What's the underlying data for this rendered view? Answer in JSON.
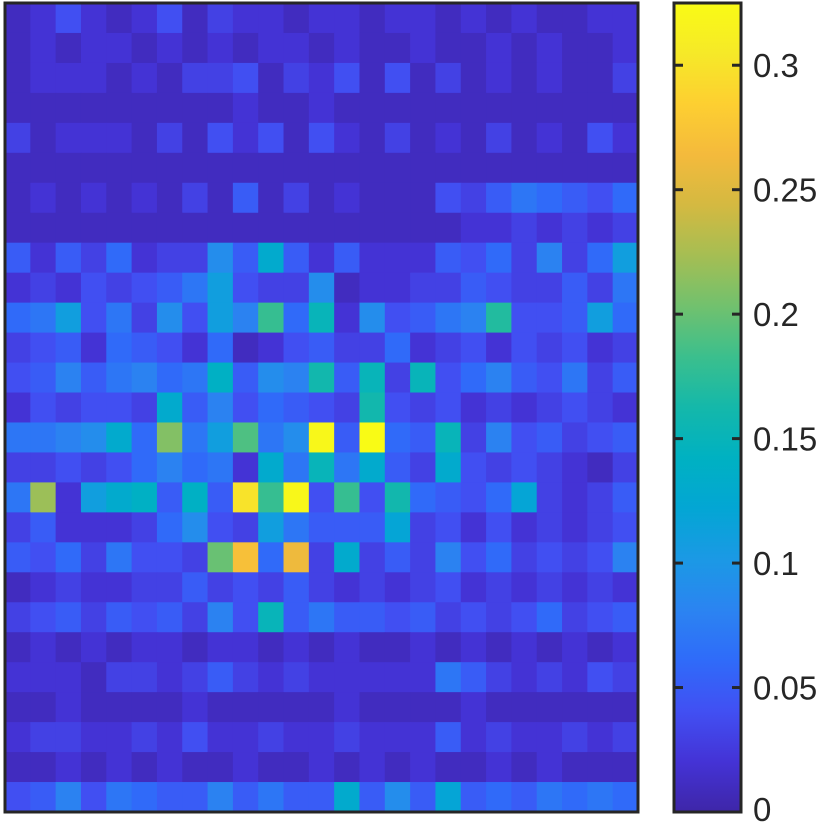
{
  "chart_data": {
    "type": "heatmap",
    "title": "",
    "xlabel": "",
    "ylabel": "",
    "colormap": "parula",
    "colormap_stops": [
      "#3e26a8",
      "#4433d6",
      "#4150f3",
      "#2f6bf9",
      "#2b84f1",
      "#1b99e5",
      "#03a6d4",
      "#00b1c2",
      "#14b8aa",
      "#3bbf8d",
      "#71c16e",
      "#a5be53",
      "#d4b941",
      "#f4ba3c",
      "#fdcf31",
      "#f6e928",
      "#f9fb15"
    ],
    "colorbar": {
      "range": [
        0,
        0.325
      ],
      "ticks": [
        0,
        0.05,
        0.1,
        0.15,
        0.2,
        0.25,
        0.3
      ],
      "tick_labels": [
        "0",
        "0.05",
        "0.1",
        "0.15",
        "0.2",
        "0.25",
        "0.3"
      ]
    },
    "rows": 27,
    "cols": 25,
    "values": [
      [
        0.01,
        0.02,
        0.04,
        0.02,
        0.01,
        0.02,
        0.04,
        0.01,
        0.03,
        0.02,
        0.02,
        0.01,
        0.02,
        0.02,
        0.01,
        0.02,
        0.02,
        0.01,
        0.02,
        0.01,
        0.02,
        0.01,
        0.01,
        0.02,
        0.02
      ],
      [
        0.01,
        0.02,
        0.01,
        0.02,
        0.02,
        0.01,
        0.02,
        0.01,
        0.02,
        0.01,
        0.02,
        0.02,
        0.01,
        0.02,
        0.01,
        0.01,
        0.02,
        0.01,
        0.01,
        0.02,
        0.01,
        0.02,
        0.01,
        0.01,
        0.02
      ],
      [
        0.01,
        0.02,
        0.02,
        0.02,
        0.01,
        0.02,
        0.01,
        0.03,
        0.03,
        0.04,
        0.01,
        0.03,
        0.02,
        0.04,
        0.01,
        0.04,
        0.01,
        0.03,
        0.01,
        0.02,
        0.01,
        0.02,
        0.01,
        0.01,
        0.03
      ],
      [
        0.01,
        0.01,
        0.01,
        0.01,
        0.01,
        0.01,
        0.01,
        0.01,
        0.01,
        0.02,
        0.01,
        0.01,
        0.02,
        0.01,
        0.01,
        0.01,
        0.01,
        0.01,
        0.01,
        0.01,
        0.01,
        0.01,
        0.01,
        0.01,
        0.01
      ],
      [
        0.03,
        0.01,
        0.02,
        0.02,
        0.02,
        0.01,
        0.03,
        0.01,
        0.04,
        0.02,
        0.04,
        0.01,
        0.04,
        0.02,
        0.01,
        0.03,
        0.01,
        0.02,
        0.01,
        0.03,
        0.01,
        0.02,
        0.01,
        0.04,
        0.02
      ],
      [
        0.01,
        0.01,
        0.01,
        0.01,
        0.01,
        0.01,
        0.01,
        0.01,
        0.01,
        0.01,
        0.01,
        0.01,
        0.01,
        0.01,
        0.01,
        0.01,
        0.01,
        0.01,
        0.01,
        0.01,
        0.01,
        0.01,
        0.01,
        0.01,
        0.01
      ],
      [
        0.01,
        0.02,
        0.01,
        0.02,
        0.01,
        0.02,
        0.01,
        0.03,
        0.01,
        0.05,
        0.01,
        0.03,
        0.01,
        0.02,
        0.01,
        0.01,
        0.01,
        0.04,
        0.03,
        0.05,
        0.07,
        0.06,
        0.05,
        0.04,
        0.06
      ],
      [
        0.01,
        0.01,
        0.01,
        0.01,
        0.01,
        0.01,
        0.01,
        0.01,
        0.01,
        0.01,
        0.01,
        0.01,
        0.01,
        0.01,
        0.01,
        0.01,
        0.01,
        0.01,
        0.02,
        0.02,
        0.03,
        0.02,
        0.03,
        0.02,
        0.03
      ],
      [
        0.05,
        0.02,
        0.05,
        0.03,
        0.06,
        0.02,
        0.03,
        0.03,
        0.09,
        0.05,
        0.13,
        0.05,
        0.02,
        0.05,
        0.02,
        0.02,
        0.02,
        0.05,
        0.04,
        0.06,
        0.03,
        0.08,
        0.03,
        0.06,
        0.11
      ],
      [
        0.02,
        0.03,
        0.02,
        0.04,
        0.03,
        0.04,
        0.05,
        0.07,
        0.11,
        0.04,
        0.03,
        0.03,
        0.09,
        0.01,
        0.02,
        0.02,
        0.03,
        0.03,
        0.05,
        0.04,
        0.03,
        0.03,
        0.05,
        0.03,
        0.07
      ],
      [
        0.06,
        0.07,
        0.11,
        0.04,
        0.07,
        0.03,
        0.09,
        0.04,
        0.11,
        0.08,
        0.18,
        0.06,
        0.15,
        0.02,
        0.09,
        0.04,
        0.05,
        0.07,
        0.08,
        0.17,
        0.04,
        0.04,
        0.05,
        0.11,
        0.06
      ],
      [
        0.03,
        0.04,
        0.05,
        0.02,
        0.06,
        0.05,
        0.04,
        0.02,
        0.06,
        0.01,
        0.02,
        0.04,
        0.05,
        0.03,
        0.03,
        0.06,
        0.02,
        0.03,
        0.04,
        0.02,
        0.04,
        0.03,
        0.04,
        0.02,
        0.03
      ],
      [
        0.04,
        0.05,
        0.08,
        0.05,
        0.07,
        0.08,
        0.06,
        0.07,
        0.14,
        0.05,
        0.09,
        0.08,
        0.16,
        0.05,
        0.15,
        0.03,
        0.15,
        0.04,
        0.06,
        0.08,
        0.05,
        0.04,
        0.07,
        0.03,
        0.05
      ],
      [
        0.02,
        0.04,
        0.03,
        0.04,
        0.04,
        0.03,
        0.13,
        0.05,
        0.08,
        0.04,
        0.06,
        0.05,
        0.04,
        0.03,
        0.16,
        0.04,
        0.03,
        0.04,
        0.02,
        0.03,
        0.02,
        0.03,
        0.04,
        0.03,
        0.02
      ],
      [
        0.07,
        0.07,
        0.08,
        0.09,
        0.13,
        0.06,
        0.21,
        0.07,
        0.11,
        0.19,
        0.07,
        0.09,
        0.32,
        0.05,
        0.33,
        0.06,
        0.05,
        0.15,
        0.03,
        0.08,
        0.04,
        0.05,
        0.03,
        0.04,
        0.05
      ],
      [
        0.03,
        0.03,
        0.04,
        0.03,
        0.04,
        0.06,
        0.08,
        0.06,
        0.07,
        0.02,
        0.13,
        0.07,
        0.15,
        0.07,
        0.13,
        0.05,
        0.03,
        0.13,
        0.04,
        0.03,
        0.04,
        0.03,
        0.02,
        0.01,
        0.03
      ],
      [
        0.07,
        0.22,
        0.02,
        0.11,
        0.13,
        0.14,
        0.05,
        0.14,
        0.05,
        0.3,
        0.18,
        0.32,
        0.04,
        0.18,
        0.04,
        0.16,
        0.06,
        0.05,
        0.04,
        0.06,
        0.12,
        0.03,
        0.02,
        0.03,
        0.05
      ],
      [
        0.03,
        0.05,
        0.02,
        0.02,
        0.02,
        0.03,
        0.06,
        0.09,
        0.04,
        0.03,
        0.11,
        0.07,
        0.05,
        0.05,
        0.05,
        0.12,
        0.03,
        0.04,
        0.02,
        0.04,
        0.02,
        0.03,
        0.02,
        0.03,
        0.04
      ],
      [
        0.05,
        0.04,
        0.06,
        0.03,
        0.07,
        0.04,
        0.04,
        0.03,
        0.2,
        0.27,
        0.06,
        0.26,
        0.03,
        0.13,
        0.03,
        0.05,
        0.03,
        0.08,
        0.04,
        0.06,
        0.03,
        0.04,
        0.03,
        0.04,
        0.08
      ],
      [
        0.01,
        0.02,
        0.03,
        0.02,
        0.02,
        0.03,
        0.03,
        0.05,
        0.03,
        0.04,
        0.03,
        0.05,
        0.03,
        0.02,
        0.03,
        0.02,
        0.03,
        0.04,
        0.02,
        0.03,
        0.02,
        0.03,
        0.02,
        0.03,
        0.02
      ],
      [
        0.03,
        0.04,
        0.05,
        0.03,
        0.05,
        0.04,
        0.05,
        0.03,
        0.08,
        0.04,
        0.15,
        0.05,
        0.07,
        0.05,
        0.05,
        0.04,
        0.05,
        0.03,
        0.04,
        0.03,
        0.04,
        0.06,
        0.03,
        0.04,
        0.05
      ],
      [
        0.01,
        0.02,
        0.01,
        0.02,
        0.01,
        0.02,
        0.02,
        0.01,
        0.02,
        0.02,
        0.01,
        0.02,
        0.01,
        0.02,
        0.01,
        0.01,
        0.02,
        0.01,
        0.02,
        0.01,
        0.02,
        0.01,
        0.02,
        0.01,
        0.02
      ],
      [
        0.02,
        0.02,
        0.02,
        0.01,
        0.03,
        0.03,
        0.02,
        0.03,
        0.05,
        0.03,
        0.02,
        0.03,
        0.02,
        0.02,
        0.02,
        0.02,
        0.02,
        0.07,
        0.05,
        0.03,
        0.02,
        0.03,
        0.02,
        0.04,
        0.03
      ],
      [
        0.01,
        0.01,
        0.02,
        0.01,
        0.01,
        0.01,
        0.01,
        0.02,
        0.01,
        0.01,
        0.01,
        0.01,
        0.01,
        0.02,
        0.01,
        0.01,
        0.01,
        0.01,
        0.02,
        0.01,
        0.01,
        0.01,
        0.01,
        0.01,
        0.01
      ],
      [
        0.02,
        0.03,
        0.03,
        0.02,
        0.02,
        0.03,
        0.02,
        0.04,
        0.02,
        0.02,
        0.03,
        0.02,
        0.02,
        0.03,
        0.02,
        0.02,
        0.02,
        0.05,
        0.02,
        0.03,
        0.02,
        0.02,
        0.03,
        0.02,
        0.03
      ],
      [
        0.01,
        0.01,
        0.02,
        0.01,
        0.02,
        0.01,
        0.02,
        0.01,
        0.01,
        0.02,
        0.01,
        0.01,
        0.02,
        0.01,
        0.02,
        0.01,
        0.02,
        0.01,
        0.01,
        0.02,
        0.01,
        0.02,
        0.01,
        0.01,
        0.01
      ],
      [
        0.04,
        0.05,
        0.08,
        0.04,
        0.07,
        0.06,
        0.05,
        0.05,
        0.08,
        0.05,
        0.07,
        0.05,
        0.05,
        0.13,
        0.05,
        0.09,
        0.05,
        0.12,
        0.05,
        0.06,
        0.05,
        0.07,
        0.06,
        0.07,
        0.06
      ]
    ]
  }
}
